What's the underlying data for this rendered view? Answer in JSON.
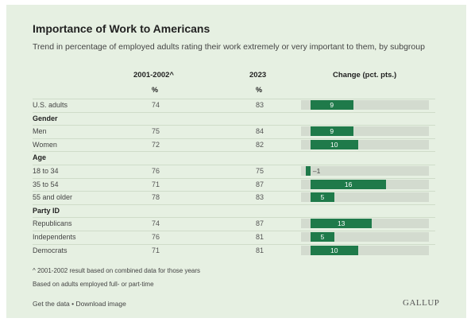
{
  "chart_data": {
    "type": "table",
    "title": "Importance of Work to Americans",
    "subtitle": "Trend in percentage of employed adults rating their work extremely or very important to them, by subgroup",
    "columns": [
      "2001-2002^",
      "2023",
      "Change (pct. pts.)"
    ],
    "units": [
      "%",
      "%"
    ],
    "x_range": [
      -2,
      25
    ],
    "rows": [
      {
        "label": "U.S. adults",
        "v2001": 74,
        "v2023": 83,
        "change": 9
      },
      {
        "section": "Gender"
      },
      {
        "label": "Men",
        "v2001": 75,
        "v2023": 84,
        "change": 9
      },
      {
        "label": "Women",
        "v2001": 72,
        "v2023": 82,
        "change": 10
      },
      {
        "section": "Age"
      },
      {
        "label": "18 to 34",
        "v2001": 76,
        "v2023": 75,
        "change": -1,
        "change_label": "–1"
      },
      {
        "label": "35 to 54",
        "v2001": 71,
        "v2023": 87,
        "change": 16
      },
      {
        "label": "55 and older",
        "v2001": 78,
        "v2023": 83,
        "change": 5
      },
      {
        "section": "Party ID"
      },
      {
        "label": "Republicans",
        "v2001": 74,
        "v2023": 87,
        "change": 13
      },
      {
        "label": "Independents",
        "v2001": 76,
        "v2023": 81,
        "change": 5
      },
      {
        "label": "Democrats",
        "v2001": 71,
        "v2023": 81,
        "change": 10
      }
    ],
    "bar_color": "#1f7a4a",
    "track_color": "#d3dbcf",
    "background_color": "#e6f0e2"
  },
  "notes": [
    "^ 2001-2002 result based on combined data for those years",
    "Based on adults employed full- or part-time"
  ],
  "footer": {
    "get_data": "Get the data",
    "separator": " • ",
    "download": "Download image",
    "brand": "GALLUP"
  }
}
